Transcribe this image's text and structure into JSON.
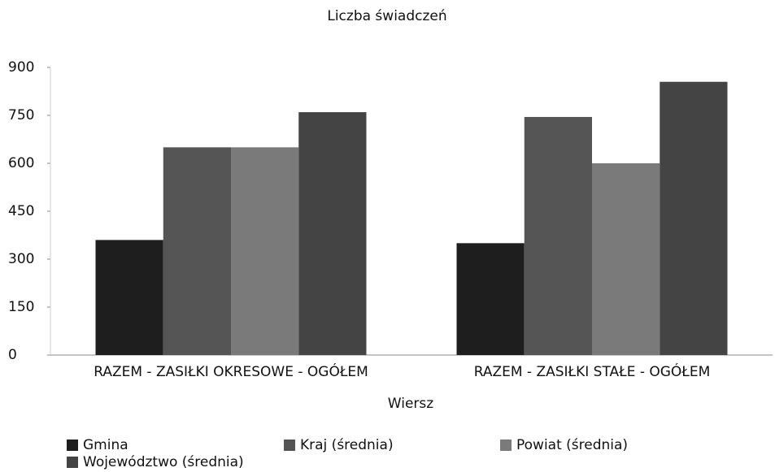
{
  "chart_data": {
    "type": "bar",
    "title": "Liczba świadczeń",
    "x_label": "Wiersz",
    "categories": [
      "RAZEM -  ZASIŁKI OKRESOWE - OGÓŁEM",
      "RAZEM -  ZASIŁKI STAŁE - OGÓŁEM"
    ],
    "series": [
      {
        "name": "Gmina",
        "color": "#1e1e1e",
        "values": [
          360,
          350
        ]
      },
      {
        "name": "Kraj (średnia)",
        "color": "#555555",
        "values": [
          650,
          745
        ]
      },
      {
        "name": "Powiat (średnia)",
        "color": "#7a7a7a",
        "values": [
          650,
          600
        ]
      },
      {
        "name": "Województwo (średnia)",
        "color": "#444444",
        "values": [
          760,
          855
        ]
      }
    ],
    "ylim": [
      0,
      900
    ],
    "yticks": [
      0,
      150,
      300,
      450,
      600,
      750,
      900
    ],
    "grid": false
  }
}
